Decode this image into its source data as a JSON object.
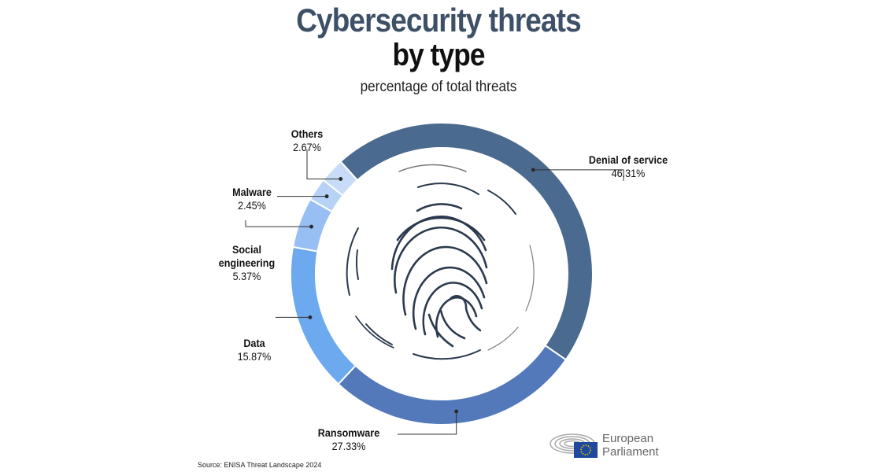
{
  "title_line1": "Cybersecurity threats",
  "title_line2": "by type",
  "subtitle": "percentage of total threats",
  "source": "Source: ENISA Threat Landscape 2024",
  "logo": {
    "line1": "European",
    "line2": "Parliament"
  },
  "chart_data": {
    "type": "pie",
    "donut": true,
    "title": "Cybersecurity threats by type",
    "subtitle": "percentage of total threats",
    "unit": "%",
    "slices": [
      {
        "label": "Denial of service",
        "value": 46.31,
        "value_label": "46.31%",
        "color": "#4b6a8f"
      },
      {
        "label": "Ransomware",
        "value": 27.33,
        "value_label": "27.33%",
        "color": "#5379bb"
      },
      {
        "label": "Data",
        "value": 15.87,
        "value_label": "15.87%",
        "color": "#6da9ef"
      },
      {
        "label": "Social engineering",
        "value": 5.37,
        "value_label": "5.37%",
        "color": "#97bff4"
      },
      {
        "label": "Malware",
        "value": 2.45,
        "value_label": "2.45%",
        "color": "#b7d2f7"
      },
      {
        "label": "Others",
        "value": 2.67,
        "value_label": "2.67%",
        "color": "#c8dcf9"
      }
    ]
  }
}
